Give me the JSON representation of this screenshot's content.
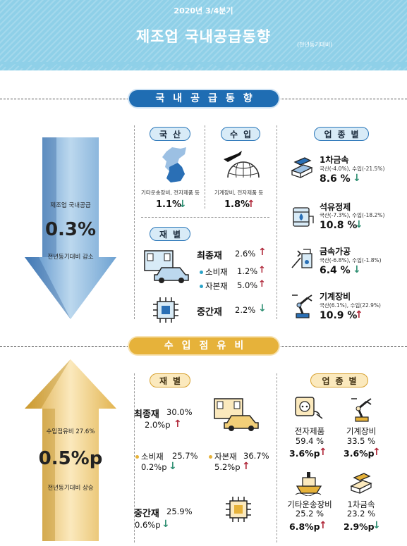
{
  "header": {
    "period": "2020년 3/4분기",
    "title": "제조업 국내공급동향",
    "yoy_note": "(전년동기대비)"
  },
  "domestic": {
    "banner": "국내공급동향",
    "big_arrow": {
      "label": "제조업 국내공급",
      "value": "0.3%",
      "caption": "전년동기대비 감소"
    },
    "domestic_prod": {
      "pill": "국산",
      "note": "기타운송장비, 전자제품 등",
      "value": "1.1%",
      "dir": "down"
    },
    "imports": {
      "pill": "수입",
      "note": "기계장비, 전자제품 등",
      "value": "1.8%",
      "dir": "up"
    },
    "by_goods": {
      "pill": "재별",
      "final": {
        "label": "최종재",
        "value": "2.6%",
        "dir": "up"
      },
      "consumer": {
        "label": "소비재",
        "value": "1.2%",
        "dir": "up"
      },
      "capital": {
        "label": "자본재",
        "value": "5.0%",
        "dir": "up"
      },
      "intermediate": {
        "label": "중간재",
        "value": "2.2%",
        "dir": "down"
      }
    },
    "by_industry": {
      "pill": "업종별",
      "items": [
        {
          "name": "1차금속",
          "note": "국산(-4.0%), 수입(-21.5%)",
          "value": "8.6 %",
          "dir": "down",
          "icon": "steel-beam-icon"
        },
        {
          "name": "석유정제",
          "note": "국산(-7.3%), 수입(-18.2%)",
          "value": "10.8 %",
          "dir": "down",
          "icon": "oil-drum-icon"
        },
        {
          "name": "금속가공",
          "note": "국산(-6.8%), 수입(-1.8%)",
          "value": "6.4 %",
          "dir": "down",
          "icon": "metal-tools-icon"
        },
        {
          "name": "기계장비",
          "note": "국산(6.1%), 수입(22.9%)",
          "value": "10.9 %",
          "dir": "up",
          "icon": "robot-arm-icon"
        }
      ]
    }
  },
  "import_share": {
    "banner": "수입점유비",
    "big_arrow": {
      "label": "수입점유비 27.6%",
      "value": "0.5%p",
      "caption": "전년동기대비 상승"
    },
    "by_goods": {
      "pill": "재별",
      "final": {
        "label": "최종재",
        "share": "30.0%",
        "change": "2.0%p",
        "dir": "up"
      },
      "consumer": {
        "label": "소비재",
        "share": "25.7%",
        "change": "0.2%p",
        "dir": "down"
      },
      "capital": {
        "label": "자본재",
        "share": "36.7%",
        "change": "5.2%p",
        "dir": "up"
      },
      "intermediate": {
        "label": "중간재",
        "share": "25.9%",
        "change": "0.6%p",
        "dir": "down"
      }
    },
    "by_industry": {
      "pill": "업종별",
      "items": [
        {
          "name": "전자제품",
          "share": "59.4 %",
          "change": "3.6%p",
          "dir": "up",
          "icon": "electronics-plug-icon"
        },
        {
          "name": "기계장비",
          "share": "33.5 %",
          "change": "3.6%p",
          "dir": "up",
          "icon": "robot-arm-icon"
        },
        {
          "name": "기타운송장비",
          "share": "25.2 %",
          "change": "6.8%p",
          "dir": "up",
          "icon": "ship-icon"
        },
        {
          "name": "1차금속",
          "share": "23.2 %",
          "change": "2.9%p",
          "dir": "down",
          "icon": "steel-beam-icon"
        }
      ]
    }
  },
  "colors": {
    "up": "#b0283a",
    "down": "#2e8f72",
    "blue": "#1f6db3",
    "gold": "#e6b23a"
  }
}
